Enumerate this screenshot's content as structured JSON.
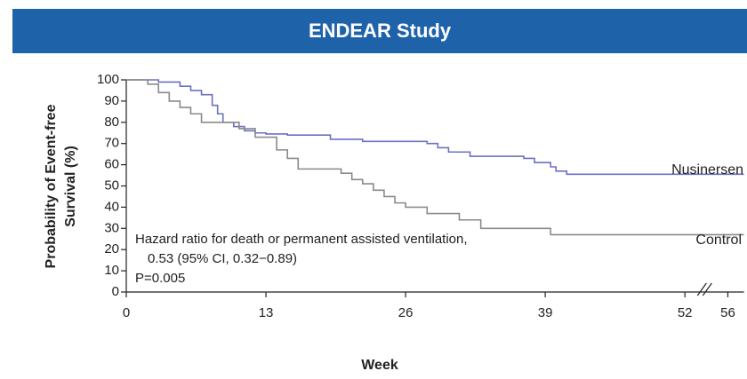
{
  "chart_data": {
    "type": "line",
    "step": true,
    "title": "ENDEAR Study",
    "xlabel": "Week",
    "ylabel": [
      "Probability of Event-free",
      "Survival (%)"
    ],
    "annotation": [
      "Hazard ratio for death or permanent assisted ventilation,",
      "0.53 (95% CI, 0.32−0.89)",
      "P=0.005"
    ],
    "xlim": [
      0,
      57.5
    ],
    "ylim": [
      0,
      100
    ],
    "xticks": [
      0,
      13,
      26,
      39,
      52,
      56
    ],
    "yticks": [
      0,
      10,
      20,
      30,
      40,
      50,
      60,
      70,
      80,
      90,
      100
    ],
    "series": [
      {
        "name": "Nusinersen",
        "color": "#6b70c4",
        "x": [
          0,
          3,
          5,
          6,
          7,
          8,
          8.5,
          9,
          10,
          11,
          12,
          13,
          15,
          19,
          22,
          28,
          29,
          30,
          32,
          37,
          38,
          39.5,
          40,
          41,
          57.5
        ],
        "values": [
          100,
          99,
          97,
          95,
          93,
          88,
          84,
          80,
          78,
          76,
          75,
          74.5,
          74,
          72,
          71,
          70,
          68,
          66,
          64,
          63,
          61,
          59,
          57,
          55.5,
          55.5
        ]
      },
      {
        "name": "Control",
        "color": "#8a8a8a",
        "x": [
          0,
          2,
          3,
          4,
          5,
          6,
          7,
          10.5,
          12,
          14,
          15,
          16,
          20,
          21,
          22,
          23,
          24,
          25,
          26,
          28,
          31,
          33,
          39.5,
          57.5
        ],
        "values": [
          100,
          98,
          94,
          90,
          87,
          84,
          80,
          77,
          73,
          67,
          63,
          58,
          56,
          53,
          51,
          48,
          45,
          42,
          40,
          37,
          34,
          30,
          27,
          27
        ]
      }
    ]
  }
}
